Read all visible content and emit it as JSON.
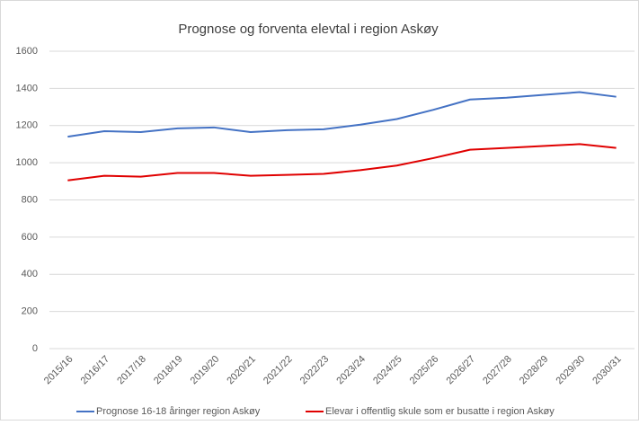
{
  "chart_data": {
    "type": "line",
    "title": "Prognose og forventa elevtal i region Askøy",
    "categories": [
      "2015/16",
      "2016/17",
      "2017/18",
      "2018/19",
      "2019/20",
      "2020/21",
      "2021/22",
      "2022/23",
      "2023/24",
      "2024/25",
      "2025/26",
      "2026/27",
      "2027/28",
      "2028/29",
      "2029/30",
      "2030/31"
    ],
    "series": [
      {
        "name": "Prognose 16-18 åringer region Askøy",
        "color": "#4472c4",
        "values": [
          1140,
          1170,
          1165,
          1185,
          1190,
          1165,
          1175,
          1180,
          1205,
          1235,
          1285,
          1340,
          1350,
          1365,
          1380,
          1355
        ]
      },
      {
        "name": "Elevar i offentlig skule som er busatte i region Askøy",
        "color": "#e00000",
        "values": [
          905,
          930,
          925,
          945,
          945,
          930,
          935,
          940,
          960,
          985,
          1025,
          1070,
          1080,
          1090,
          1100,
          1080
        ]
      }
    ],
    "ylim": [
      0,
      1600
    ],
    "yticks": [
      0,
      200,
      400,
      600,
      800,
      1000,
      1200,
      1400,
      1600
    ],
    "grid": true,
    "legend": "bottom"
  }
}
